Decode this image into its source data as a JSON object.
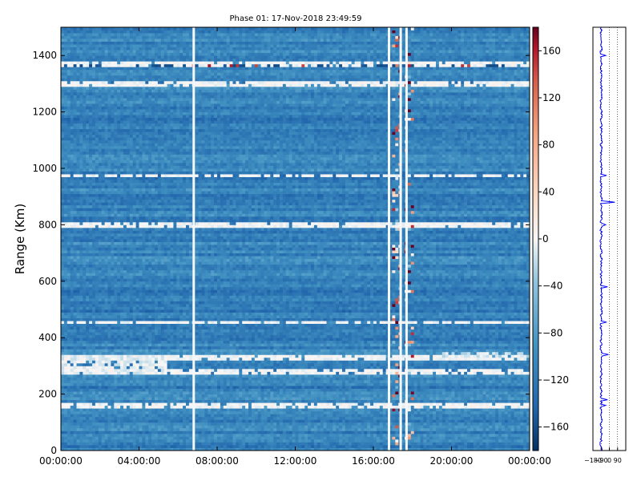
{
  "chart_data": [
    {
      "type": "heatmap",
      "title": "Phase 01: 17-Nov-2018 23:49:59",
      "xlabel": "",
      "ylabel": "Range (Km)",
      "x_ticks": [
        "00:00:00",
        "04:00:00",
        "08:00:00",
        "12:00:00",
        "16:00:00",
        "20:00:00",
        "00:00:00"
      ],
      "y_ticks": [
        0,
        200,
        400,
        600,
        800,
        1000,
        1200,
        1400
      ],
      "ylim": [
        0,
        1500
      ],
      "x_range_hours": [
        0,
        24
      ],
      "grid": false,
      "colorbar": {
        "ticks": [
          160,
          120,
          80,
          40,
          0,
          -40,
          -80,
          -120,
          -160
        ],
        "range": [
          -180,
          180
        ],
        "colormap": "RdBu_r",
        "colors": {
          "min": "#053061",
          "mid": "#f7f7f7",
          "max": "#67001f"
        }
      },
      "features": {
        "white_stripes_km": [
          1370,
          1300,
          975,
          800,
          455,
          330,
          280,
          160
        ],
        "dark_stripes_km": [
          1365,
          1300,
          860,
          800,
          270
        ],
        "vertical_gaps_hours": [
          6.8,
          16.8,
          17.4,
          17.7
        ],
        "noisy_columns_hours": [
          17.2,
          17.8
        ],
        "white_patch": {
          "hours": [
            0,
            5.5
          ],
          "km": [
            270,
            340
          ]
        },
        "white_patch_late": {
          "hours": [
            19.5,
            24
          ],
          "km": [
            330,
            350
          ]
        },
        "background_value": -110
      }
    },
    {
      "type": "line",
      "title": "",
      "x_ticks": [
        -180,
        -90,
        0,
        90
      ],
      "x_tick_labels": [
        "−180",
        "−90",
        "0",
        "90"
      ],
      "xlim": [
        -180,
        180
      ],
      "ylim": [
        0,
        1500
      ],
      "grid": true,
      "series_color": "#0000ff",
      "profile": {
        "base_value": -90,
        "spikes": [
          {
            "km": 1400,
            "value": -40
          },
          {
            "km": 975,
            "value": -30
          },
          {
            "km": 880,
            "value": 60
          },
          {
            "km": 800,
            "value": -40
          },
          {
            "km": 580,
            "value": -20
          },
          {
            "km": 455,
            "value": -30
          },
          {
            "km": 340,
            "value": -10
          },
          {
            "km": 180,
            "value": -20
          },
          {
            "km": 160,
            "value": -40
          }
        ]
      }
    }
  ]
}
